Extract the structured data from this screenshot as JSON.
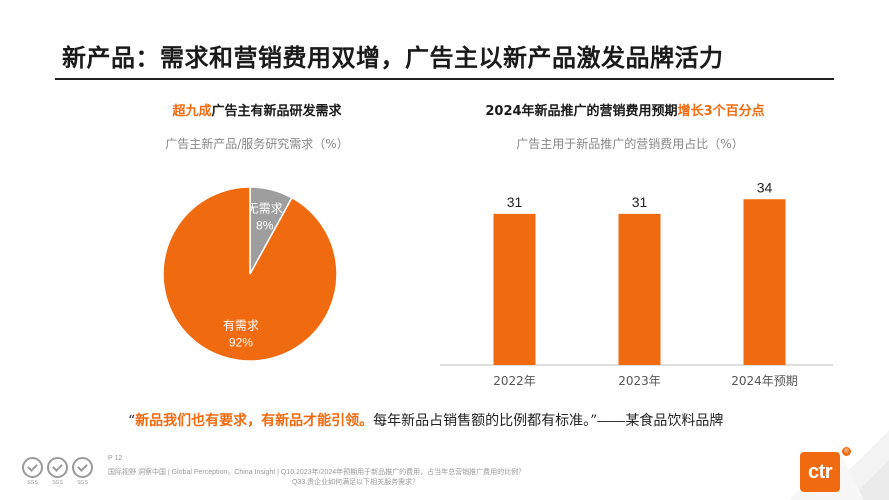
{
  "page": {
    "title": "新产品：需求和营销费用双增，广告主以新产品激发品牌活力",
    "page_number": "P 12",
    "footnote_line1": "国际视野 洞察中国 | Global Perception，China Insight | Q10.2023年/2024年预期用于新品推广的费用，占当年总营销推广费用的比例？",
    "footnote_line2": "Q33.贵企业如何满足以下相关服务需求？",
    "logo_text": "ctr",
    "logo_mark": "®",
    "badge_captions": [
      "SGS",
      "SGS",
      "SGS"
    ],
    "accent_color": "#f06a0f"
  },
  "left_panel": {
    "title_highlight": "超九成",
    "title_rest": "广告主有新品研发需求",
    "subtitle": "广告主新产品/服务研究需求（%）"
  },
  "right_panel": {
    "title_main": "2024年新品推广的营销费用预期",
    "title_highlight": "增长3个百分点",
    "subtitle": "广告主用于新品推广的营销费用占比（%）"
  },
  "quote": {
    "open_mark": "“",
    "highlight": "新品我们也有要求，有新品才能引领。",
    "rest": "每年新品占销售额的比例都有标准。",
    "close_mark": "”",
    "source": "——某食品饮料品牌"
  },
  "chart_data": [
    {
      "type": "pie",
      "title": "广告主新产品/服务研究需求（%）",
      "slices": [
        {
          "label": "无需求",
          "value": 8,
          "value_label": "8%",
          "color": "#9e9e9e"
        },
        {
          "label": "有需求",
          "value": 92,
          "value_label": "92%",
          "color": "#f06a0f"
        }
      ]
    },
    {
      "type": "bar",
      "title": "广告主用于新品推广的营销费用占比（%）",
      "categories": [
        "2022年",
        "2023年",
        "2024年预期"
      ],
      "values": [
        31,
        31,
        34
      ],
      "value_labels": [
        "31",
        "31",
        "34"
      ],
      "ylim": [
        0,
        40
      ],
      "grid": false,
      "color": "#f06a0f"
    }
  ]
}
